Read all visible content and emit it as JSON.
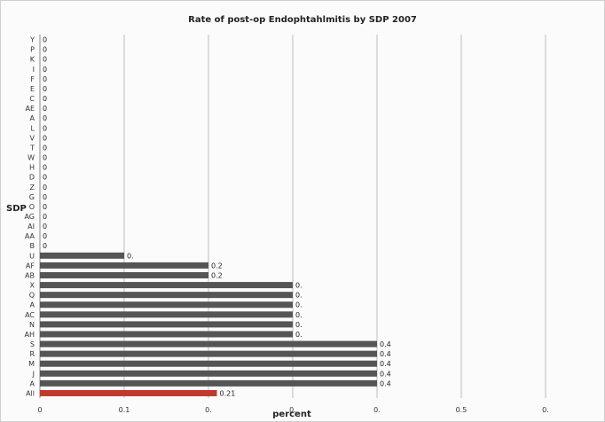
{
  "chart_data": {
    "type": "bar",
    "orientation": "horizontal",
    "title": "Rate of post-op Endophtahlmitis by SDP 2007",
    "xlabel": "percent",
    "ylabel": "SDP",
    "xlim": [
      0,
      0.6
    ],
    "x_ticks": [
      0,
      0.1,
      0.2,
      0.3,
      0.4,
      0.5,
      0.6
    ],
    "x_tick_labels": [
      "0",
      "0.1",
      "0.",
      "0.",
      "0.",
      "0.5",
      "0."
    ],
    "grid": "vertical",
    "colors": {
      "default_bar": "#555555",
      "highlight_bar": "#c0392b",
      "gridline": "#bdbdbd"
    },
    "categories": [
      "Y",
      "P",
      "K",
      "I",
      "F",
      "E",
      "C",
      "AE",
      "A",
      "L",
      "V",
      "T",
      "W",
      "H",
      "D",
      "Z",
      "G",
      "O",
      "AG",
      "AI",
      "AA",
      "B",
      "U",
      "AF",
      "AB",
      "X",
      "Q",
      "A",
      "AC",
      "N",
      "AH",
      "S",
      "R",
      "M",
      "J",
      "A",
      "All"
    ],
    "values": [
      0,
      0,
      0,
      0,
      0,
      0,
      0,
      0,
      0,
      0,
      0,
      0,
      0,
      0,
      0,
      0,
      0,
      0,
      0,
      0,
      0,
      0,
      0.1,
      0.2,
      0.2,
      0.3,
      0.3,
      0.3,
      0.3,
      0.3,
      0.3,
      0.4,
      0.4,
      0.4,
      0.4,
      0.4,
      0.21
    ],
    "data_labels": [
      "0",
      "0",
      "0",
      "0",
      "0",
      "0",
      "0",
      "0",
      "0",
      "0",
      "0",
      "0",
      "0",
      "0",
      "0",
      "0",
      "0",
      "0",
      "0",
      "0",
      "0",
      "0",
      "0.",
      "0.2",
      "0.2",
      "0.",
      "0.",
      "0.",
      "0.",
      "0.",
      "0.",
      "0.4",
      "0.4",
      "0.4",
      "0.4",
      "0.4",
      "0.21"
    ],
    "highlight": [
      "All"
    ]
  }
}
